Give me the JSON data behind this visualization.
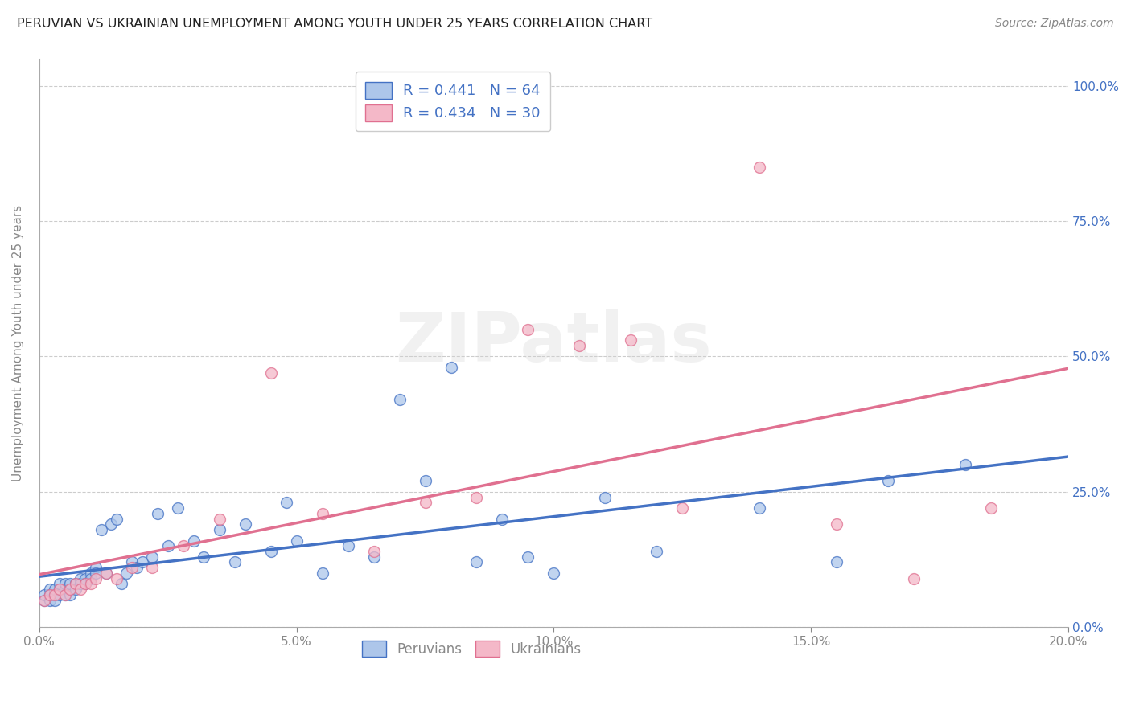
{
  "title": "PERUVIAN VS UKRAINIAN UNEMPLOYMENT AMONG YOUTH UNDER 25 YEARS CORRELATION CHART",
  "source": "Source: ZipAtlas.com",
  "ylabel": "Unemployment Among Youth under 25 years",
  "xlim": [
    0.0,
    0.2
  ],
  "ylim": [
    0.0,
    1.05
  ],
  "xticks": [
    0.0,
    0.05,
    0.1,
    0.15,
    0.2
  ],
  "xtick_labels": [
    "0.0%",
    "5.0%",
    "10.0%",
    "15.0%",
    "20.0%"
  ],
  "yticks": [
    0.0,
    0.25,
    0.5,
    0.75,
    1.0
  ],
  "ytick_labels": [
    "0.0%",
    "25.0%",
    "50.0%",
    "75.0%",
    "100.0%"
  ],
  "peruvians_x": [
    0.001,
    0.001,
    0.002,
    0.002,
    0.002,
    0.003,
    0.003,
    0.003,
    0.004,
    0.004,
    0.004,
    0.005,
    0.005,
    0.005,
    0.006,
    0.006,
    0.006,
    0.007,
    0.007,
    0.008,
    0.008,
    0.009,
    0.009,
    0.01,
    0.01,
    0.011,
    0.011,
    0.012,
    0.013,
    0.014,
    0.015,
    0.016,
    0.017,
    0.018,
    0.019,
    0.02,
    0.022,
    0.023,
    0.025,
    0.027,
    0.03,
    0.032,
    0.035,
    0.038,
    0.04,
    0.045,
    0.048,
    0.05,
    0.055,
    0.06,
    0.065,
    0.07,
    0.075,
    0.08,
    0.085,
    0.09,
    0.095,
    0.1,
    0.11,
    0.12,
    0.14,
    0.155,
    0.165,
    0.18
  ],
  "peruvians_y": [
    0.05,
    0.06,
    0.05,
    0.07,
    0.06,
    0.06,
    0.07,
    0.05,
    0.07,
    0.06,
    0.08,
    0.07,
    0.06,
    0.08,
    0.07,
    0.08,
    0.06,
    0.08,
    0.07,
    0.09,
    0.08,
    0.09,
    0.08,
    0.1,
    0.09,
    0.11,
    0.1,
    0.18,
    0.1,
    0.19,
    0.2,
    0.08,
    0.1,
    0.12,
    0.11,
    0.12,
    0.13,
    0.21,
    0.15,
    0.22,
    0.16,
    0.13,
    0.18,
    0.12,
    0.19,
    0.14,
    0.23,
    0.16,
    0.1,
    0.15,
    0.13,
    0.42,
    0.27,
    0.48,
    0.12,
    0.2,
    0.13,
    0.1,
    0.24,
    0.14,
    0.22,
    0.12,
    0.27,
    0.3
  ],
  "ukrainians_x": [
    0.001,
    0.002,
    0.003,
    0.004,
    0.005,
    0.006,
    0.007,
    0.008,
    0.009,
    0.01,
    0.011,
    0.013,
    0.015,
    0.018,
    0.022,
    0.028,
    0.035,
    0.045,
    0.055,
    0.065,
    0.075,
    0.085,
    0.095,
    0.105,
    0.115,
    0.125,
    0.14,
    0.155,
    0.17,
    0.185
  ],
  "ukrainians_y": [
    0.05,
    0.06,
    0.06,
    0.07,
    0.06,
    0.07,
    0.08,
    0.07,
    0.08,
    0.08,
    0.09,
    0.1,
    0.09,
    0.11,
    0.11,
    0.15,
    0.2,
    0.47,
    0.21,
    0.14,
    0.23,
    0.24,
    0.55,
    0.52,
    0.53,
    0.22,
    0.85,
    0.19,
    0.09,
    0.22
  ],
  "peruvian_color": "#adc6ea",
  "ukrainian_color": "#f4b8c8",
  "peruvian_edge_color": "#4472c4",
  "ukrainian_edge_color": "#e07090",
  "peruvian_line_color": "#4472c4",
  "ukrainian_line_color": "#e07090",
  "background_color": "#ffffff",
  "grid_color": "#cccccc",
  "axis_color": "#aaaaaa",
  "title_color": "#222222",
  "label_color": "#888888",
  "right_tick_color": "#4472c4",
  "legend_text_1": "R = 0.441   N = 64",
  "legend_text_2": "R = 0.434   N = 30",
  "legend_label_peru": "Peruvians",
  "legend_label_ukr": "Ukrainians",
  "watermark": "ZIPatlas"
}
